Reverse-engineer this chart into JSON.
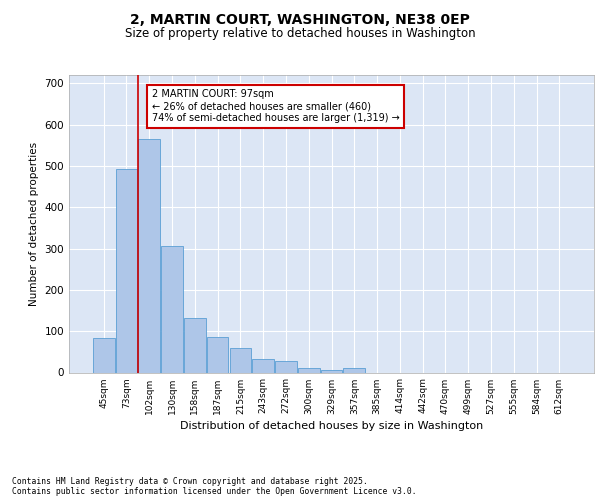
{
  "title1": "2, MARTIN COURT, WASHINGTON, NE38 0EP",
  "title2": "Size of property relative to detached houses in Washington",
  "xlabel": "Distribution of detached houses by size in Washington",
  "ylabel": "Number of detached properties",
  "bar_labels": [
    "45sqm",
    "73sqm",
    "102sqm",
    "130sqm",
    "158sqm",
    "187sqm",
    "215sqm",
    "243sqm",
    "272sqm",
    "300sqm",
    "329sqm",
    "357sqm",
    "385sqm",
    "414sqm",
    "442sqm",
    "470sqm",
    "499sqm",
    "527sqm",
    "555sqm",
    "584sqm",
    "612sqm"
  ],
  "bar_values": [
    83,
    493,
    565,
    307,
    133,
    85,
    60,
    32,
    27,
    10,
    7,
    10,
    0,
    0,
    0,
    0,
    0,
    0,
    0,
    0,
    0
  ],
  "bar_color": "#aec6e8",
  "bar_edge_color": "#5a9fd4",
  "bg_color": "#dce6f5",
  "grid_color": "#ffffff",
  "vline_color": "#cc0000",
  "annotation_text": "2 MARTIN COURT: 97sqm\n← 26% of detached houses are smaller (460)\n74% of semi-detached houses are larger (1,319) →",
  "annotation_box_color": "#ffffff",
  "annotation_box_edge": "#cc0000",
  "ylim": [
    0,
    720
  ],
  "yticks": [
    0,
    100,
    200,
    300,
    400,
    500,
    600,
    700
  ],
  "footer_line1": "Contains HM Land Registry data © Crown copyright and database right 2025.",
  "footer_line2": "Contains public sector information licensed under the Open Government Licence v3.0."
}
